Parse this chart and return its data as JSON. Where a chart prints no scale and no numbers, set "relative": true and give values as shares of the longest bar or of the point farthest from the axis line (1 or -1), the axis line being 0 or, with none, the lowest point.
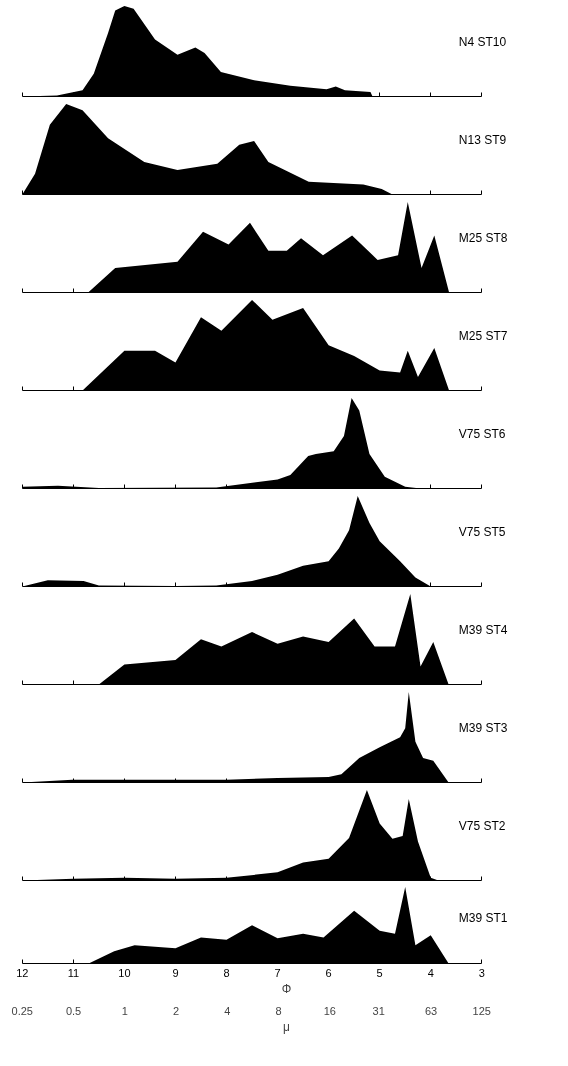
{
  "chart_data": [
    {
      "type": "area",
      "title": "N4 ST10",
      "relative": true,
      "color": "#000000",
      "xlim": [
        12,
        3
      ],
      "xticks": [
        12,
        11,
        10,
        9,
        8,
        7,
        6,
        5,
        4,
        3
      ],
      "tick_labels": false,
      "x": [
        12,
        11.32,
        10.82,
        10.6,
        10.32,
        10.18,
        10.0,
        9.82,
        9.4,
        8.96,
        8.61,
        8.43,
        8.11,
        7.46,
        6.75,
        6.04,
        5.86,
        5.68,
        5.18,
        5.14,
        3
      ],
      "values": [
        0,
        0.01,
        0.07,
        0.25,
        0.7,
        0.95,
        1.0,
        0.97,
        0.63,
        0.46,
        0.54,
        0.48,
        0.27,
        0.18,
        0.12,
        0.08,
        0.11,
        0.07,
        0.05,
        0,
        0
      ]
    },
    {
      "type": "area",
      "title": "N13 ST9",
      "relative": true,
      "color": "#000000",
      "xlim": [
        12,
        3
      ],
      "xticks": [
        12,
        11,
        10,
        9,
        8,
        7,
        6,
        5,
        4,
        3
      ],
      "tick_labels": false,
      "x": [
        12,
        11.75,
        11.46,
        11.14,
        10.82,
        10.32,
        9.61,
        8.96,
        8.18,
        7.75,
        7.46,
        7.18,
        6.39,
        5.32,
        4.96,
        4.75,
        3
      ],
      "values": [
        0,
        0.23,
        0.77,
        1.0,
        0.93,
        0.62,
        0.36,
        0.27,
        0.34,
        0.55,
        0.59,
        0.36,
        0.14,
        0.11,
        0.06,
        0,
        0
      ]
    },
    {
      "type": "area",
      "title": "M25 ST8",
      "relative": true,
      "color": "#000000",
      "xlim": [
        12,
        3
      ],
      "xticks": [
        12,
        11,
        10,
        9,
        8,
        7,
        6,
        5,
        4,
        3
      ],
      "tick_labels": false,
      "x": [
        12,
        10.71,
        10.18,
        8.96,
        8.46,
        7.96,
        7.54,
        7.18,
        6.82,
        6.54,
        6.11,
        5.54,
        5.04,
        4.64,
        4.45,
        4.18,
        3.93,
        3.64,
        3
      ],
      "values": [
        0,
        0,
        0.27,
        0.34,
        0.67,
        0.53,
        0.77,
        0.46,
        0.46,
        0.6,
        0.41,
        0.63,
        0.36,
        0.41,
        1.0,
        0.27,
        0.63,
        0,
        0
      ]
    },
    {
      "type": "area",
      "title": "M25 ST7",
      "relative": true,
      "color": "#000000",
      "xlim": [
        12,
        3
      ],
      "xticks": [
        12,
        11,
        10,
        9,
        8,
        7,
        6,
        5,
        4,
        3
      ],
      "tick_labels": false,
      "x": [
        12,
        10.82,
        10.0,
        9.4,
        9.0,
        8.5,
        8.1,
        7.5,
        7.1,
        6.5,
        6.0,
        5.5,
        5.0,
        4.6,
        4.45,
        4.25,
        3.93,
        3.64,
        3
      ],
      "values": [
        0,
        0,
        0.44,
        0.44,
        0.31,
        0.81,
        0.66,
        1.0,
        0.78,
        0.91,
        0.5,
        0.38,
        0.22,
        0.2,
        0.44,
        0.15,
        0.47,
        0,
        0
      ]
    },
    {
      "type": "area",
      "title": "V75 ST6",
      "relative": true,
      "color": "#000000",
      "xlim": [
        12,
        3
      ],
      "xticks": [
        12,
        11,
        10,
        9,
        8,
        7,
        6,
        5,
        4,
        3
      ],
      "tick_labels": false,
      "x": [
        12,
        11.3,
        10.5,
        8.2,
        7.0,
        6.75,
        6.4,
        6.25,
        5.9,
        5.7,
        5.55,
        5.4,
        5.2,
        4.9,
        4.5,
        4.2,
        3
      ],
      "values": [
        0.02,
        0.03,
        0.005,
        0.01,
        0.1,
        0.15,
        0.36,
        0.38,
        0.41,
        0.58,
        1.0,
        0.86,
        0.38,
        0.13,
        0.02,
        0,
        0
      ]
    },
    {
      "type": "area",
      "title": "V75 ST5",
      "relative": true,
      "color": "#000000",
      "xlim": [
        12,
        3
      ],
      "xticks": [
        12,
        11,
        10,
        9,
        8,
        7,
        6,
        5,
        4,
        3
      ],
      "tick_labels": false,
      "x": [
        12,
        11.5,
        10.8,
        10.5,
        9.0,
        8.2,
        7.5,
        7.0,
        6.5,
        6.0,
        5.8,
        5.6,
        5.43,
        5.2,
        5.0,
        4.6,
        4.3,
        4.0,
        3
      ],
      "values": [
        0,
        0.07,
        0.06,
        0.01,
        0.005,
        0.01,
        0.06,
        0.13,
        0.23,
        0.28,
        0.42,
        0.62,
        1.0,
        0.7,
        0.5,
        0.28,
        0.1,
        0,
        0
      ]
    },
    {
      "type": "area",
      "title": "M39 ST4",
      "relative": true,
      "color": "#000000",
      "xlim": [
        12,
        3
      ],
      "xticks": [
        12,
        11,
        10,
        9,
        8,
        7,
        6,
        5,
        4,
        3
      ],
      "tick_labels": false,
      "x": [
        12,
        10.5,
        10.0,
        9.0,
        8.5,
        8.1,
        7.5,
        7.0,
        6.5,
        6.0,
        5.5,
        5.1,
        4.7,
        4.4,
        4.2,
        3.95,
        3.65,
        3
      ],
      "values": [
        0,
        0,
        0.22,
        0.27,
        0.5,
        0.42,
        0.58,
        0.45,
        0.53,
        0.47,
        0.73,
        0.42,
        0.42,
        1.0,
        0.2,
        0.47,
        0,
        0
      ]
    },
    {
      "type": "area",
      "title": "M39 ST3",
      "relative": true,
      "color": "#000000",
      "xlim": [
        12,
        3
      ],
      "xticks": [
        12,
        11,
        10,
        9,
        8,
        7,
        6,
        5,
        4,
        3
      ],
      "tick_labels": false,
      "x": [
        12,
        11.02,
        10.2,
        8.0,
        7.0,
        6.0,
        5.75,
        5.4,
        5.0,
        4.6,
        4.5,
        4.43,
        4.3,
        4.15,
        3.95,
        3.65,
        3
      ],
      "values": [
        0,
        0.03,
        0.03,
        0.03,
        0.05,
        0.06,
        0.09,
        0.27,
        0.39,
        0.5,
        0.6,
        1.0,
        0.45,
        0.27,
        0.24,
        0,
        0
      ]
    },
    {
      "type": "area",
      "title": "V75 ST2",
      "relative": true,
      "color": "#000000",
      "xlim": [
        12,
        3
      ],
      "xticks": [
        12,
        11,
        10,
        9,
        8,
        7,
        6,
        5,
        4,
        3
      ],
      "tick_labels": false,
      "x": [
        12,
        11.0,
        10.0,
        9.0,
        8.0,
        7.0,
        6.5,
        6.0,
        5.6,
        5.25,
        5.0,
        4.75,
        4.55,
        4.43,
        4.25,
        4.0,
        3.85,
        3
      ],
      "values": [
        0,
        0.02,
        0.03,
        0.02,
        0.03,
        0.09,
        0.2,
        0.24,
        0.47,
        1.0,
        0.63,
        0.46,
        0.49,
        0.9,
        0.43,
        0.03,
        0,
        0
      ]
    },
    {
      "type": "area",
      "title": "M39 ST1",
      "relative": true,
      "color": "#000000",
      "xlim": [
        12,
        3
      ],
      "xticks": [
        12,
        11,
        10,
        9,
        8,
        7,
        6,
        5,
        4,
        3
      ],
      "xlabel": "Φ",
      "x2lim": [
        0.25,
        125
      ],
      "x2label": "μ",
      "log": "x2",
      "x2ticks": [
        0.25,
        0.5,
        1,
        2,
        4,
        8,
        16,
        31,
        63,
        125
      ],
      "x": [
        12,
        10.7,
        10.2,
        9.8,
        9.0,
        8.5,
        8.0,
        7.5,
        7.0,
        6.5,
        6.1,
        5.5,
        5.0,
        4.7,
        4.5,
        4.3,
        4.0,
        3.65,
        3
      ],
      "values": [
        0,
        0,
        0.16,
        0.24,
        0.2,
        0.34,
        0.31,
        0.5,
        0.33,
        0.39,
        0.34,
        0.69,
        0.43,
        0.39,
        1.0,
        0.24,
        0.37,
        0,
        0
      ]
    }
  ]
}
